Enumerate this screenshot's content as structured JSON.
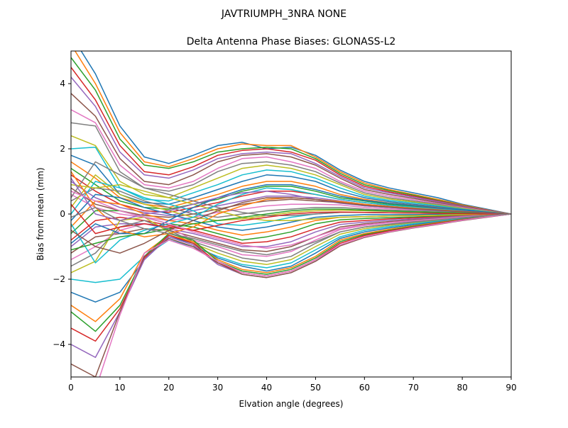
{
  "figure": {
    "suptitle": "JAVTRIUMPH_3NRA NONE"
  },
  "chart_data": {
    "type": "line",
    "title": "Delta Antenna Phase Biases: GLONASS-L2",
    "xlabel": "Elvation angle (degrees)",
    "ylabel": "Bias from mean (mm)",
    "xlim": [
      0,
      90
    ],
    "ylim": [
      -5,
      5
    ],
    "xticks": [
      0,
      10,
      20,
      30,
      40,
      50,
      60,
      70,
      80,
      90
    ],
    "yticks": [
      -4,
      -2,
      0,
      2,
      4
    ],
    "xtick_labels": [
      "0",
      "10",
      "20",
      "30",
      "40",
      "50",
      "60",
      "70",
      "80",
      "90"
    ],
    "ytick_labels": [
      "−4",
      "−2",
      "0",
      "2",
      "4"
    ],
    "grid": false,
    "legend": "none",
    "colors": [
      "#1f77b4",
      "#ff7f0e",
      "#2ca02c",
      "#d62728",
      "#9467bd",
      "#8c564b",
      "#e377c2",
      "#7f7f7f",
      "#bcbd22",
      "#17becf"
    ],
    "x": [
      0,
      5,
      10,
      15,
      20,
      25,
      30,
      35,
      40,
      45,
      50,
      55,
      60,
      65,
      70,
      75,
      80,
      85,
      90
    ],
    "series": [
      {
        "values": [
          5.5,
          4.3,
          2.7,
          1.75,
          1.55,
          1.8,
          2.1,
          2.2,
          2.0,
          2.05,
          1.8,
          1.35,
          1.0,
          0.8,
          0.65,
          0.5,
          0.3,
          0.15,
          0
        ]
      },
      {
        "values": [
          5.2,
          4.0,
          2.5,
          1.6,
          1.45,
          1.7,
          2.0,
          2.15,
          2.1,
          2.1,
          1.75,
          1.3,
          0.95,
          0.75,
          0.6,
          0.45,
          0.28,
          0.13,
          0
        ]
      },
      {
        "values": [
          4.8,
          3.8,
          2.3,
          1.5,
          1.4,
          1.6,
          1.9,
          2.0,
          2.05,
          2.0,
          1.7,
          1.25,
          0.9,
          0.72,
          0.58,
          0.42,
          0.26,
          0.12,
          0
        ]
      },
      {
        "values": [
          4.5,
          3.5,
          2.1,
          1.3,
          1.2,
          1.45,
          1.8,
          1.95,
          2.0,
          1.9,
          1.65,
          1.2,
          0.85,
          0.68,
          0.55,
          0.4,
          0.25,
          0.12,
          0
        ]
      },
      {
        "values": [
          4.2,
          3.3,
          1.9,
          1.2,
          1.1,
          1.35,
          1.7,
          1.85,
          1.9,
          1.85,
          1.55,
          1.15,
          0.8,
          0.65,
          0.52,
          0.38,
          0.24,
          0.11,
          0
        ]
      },
      {
        "values": [
          3.7,
          3.0,
          1.7,
          1.0,
          0.9,
          1.2,
          1.6,
          1.8,
          1.85,
          1.75,
          1.5,
          1.1,
          0.75,
          0.6,
          0.48,
          0.35,
          0.22,
          0.1,
          0
        ]
      },
      {
        "values": [
          3.2,
          2.8,
          1.5,
          0.9,
          0.8,
          1.0,
          1.4,
          1.7,
          1.75,
          1.6,
          1.4,
          1.0,
          0.7,
          0.55,
          0.44,
          0.32,
          0.2,
          0.09,
          0
        ]
      },
      {
        "values": [
          2.8,
          2.7,
          1.3,
          0.8,
          0.7,
          0.9,
          1.3,
          1.55,
          1.6,
          1.5,
          1.3,
          0.95,
          0.65,
          0.5,
          0.4,
          0.3,
          0.18,
          0.08,
          0
        ]
      },
      {
        "values": [
          2.4,
          2.1,
          1.0,
          0.6,
          0.5,
          0.8,
          1.1,
          1.4,
          1.5,
          1.4,
          1.2,
          0.9,
          0.6,
          0.46,
          0.37,
          0.27,
          0.17,
          0.08,
          0
        ]
      },
      {
        "values": [
          2.0,
          2.05,
          0.8,
          0.45,
          0.4,
          0.65,
          0.9,
          1.2,
          1.35,
          1.3,
          1.1,
          0.8,
          0.55,
          0.42,
          0.34,
          0.25,
          0.15,
          0.07,
          0
        ]
      },
      {
        "values": [
          1.8,
          1.5,
          0.6,
          0.35,
          0.3,
          0.5,
          0.75,
          1.0,
          1.2,
          1.15,
          1.0,
          0.7,
          0.5,
          0.38,
          0.3,
          0.22,
          0.14,
          0.06,
          0
        ]
      },
      {
        "values": [
          1.6,
          1.1,
          0.5,
          0.3,
          0.2,
          0.4,
          0.6,
          0.85,
          1.0,
          1.0,
          0.85,
          0.6,
          0.45,
          0.34,
          0.27,
          0.2,
          0.12,
          0.06,
          0
        ]
      },
      {
        "values": [
          1.4,
          0.9,
          0.4,
          0.2,
          0.15,
          0.3,
          0.45,
          0.7,
          0.85,
          0.85,
          0.7,
          0.5,
          0.4,
          0.3,
          0.24,
          0.18,
          0.11,
          0.05,
          0
        ]
      },
      {
        "values": [
          1.2,
          0.7,
          0.3,
          0.1,
          0.05,
          0.2,
          0.35,
          0.55,
          0.7,
          0.7,
          0.6,
          0.45,
          0.35,
          0.26,
          0.21,
          0.16,
          0.1,
          0.05,
          0
        ]
      },
      {
        "values": [
          1.0,
          0.5,
          0.2,
          0.05,
          -0.05,
          0.1,
          0.25,
          0.4,
          0.55,
          0.55,
          0.5,
          0.4,
          0.3,
          0.22,
          0.18,
          0.14,
          0.09,
          0.04,
          0
        ]
      },
      {
        "values": [
          0.8,
          0.3,
          0.1,
          -0.05,
          -0.1,
          0.0,
          0.15,
          0.3,
          0.4,
          0.45,
          0.4,
          0.35,
          0.25,
          0.2,
          0.16,
          0.12,
          0.08,
          0.04,
          0
        ]
      },
      {
        "values": [
          0.6,
          0.2,
          0.0,
          -0.1,
          -0.2,
          -0.1,
          0.05,
          0.15,
          0.25,
          0.3,
          0.3,
          0.28,
          0.2,
          0.16,
          0.13,
          0.1,
          0.06,
          0.03,
          0
        ]
      },
      {
        "values": [
          0.4,
          0.8,
          0.7,
          0.4,
          0.2,
          0.0,
          -0.1,
          0.0,
          0.1,
          0.15,
          0.2,
          0.2,
          0.15,
          0.12,
          0.1,
          0.08,
          0.05,
          0.02,
          0
        ]
      },
      {
        "values": [
          0.2,
          1.2,
          0.6,
          0.3,
          0.1,
          -0.1,
          -0.2,
          -0.15,
          -0.05,
          0.05,
          0.1,
          0.12,
          0.1,
          0.08,
          0.07,
          0.05,
          0.03,
          0.01,
          0
        ]
      },
      {
        "values": [
          0.0,
          1.0,
          0.8,
          0.5,
          0.3,
          0.1,
          -0.3,
          -0.35,
          -0.25,
          -0.1,
          0.0,
          0.05,
          0.05,
          0.04,
          0.03,
          0.02,
          0.01,
          0.0,
          0
        ]
      },
      {
        "values": [
          -0.2,
          0.6,
          0.5,
          0.2,
          0.0,
          -0.2,
          -0.4,
          -0.5,
          -0.4,
          -0.25,
          -0.1,
          -0.05,
          -0.02,
          -0.02,
          -0.02,
          -0.01,
          -0.01,
          0.0,
          0
        ]
      },
      {
        "values": [
          -0.4,
          0.4,
          0.3,
          0.0,
          -0.2,
          -0.3,
          -0.5,
          -0.65,
          -0.55,
          -0.4,
          -0.2,
          -0.1,
          -0.08,
          -0.06,
          -0.05,
          -0.04,
          -0.02,
          -0.01,
          0
        ]
      },
      {
        "values": [
          -0.6,
          0.1,
          0.1,
          -0.1,
          -0.3,
          -0.4,
          -0.6,
          -0.8,
          -0.7,
          -0.55,
          -0.3,
          -0.18,
          -0.14,
          -0.11,
          -0.09,
          -0.07,
          -0.04,
          -0.02,
          0
        ]
      },
      {
        "values": [
          -0.8,
          -0.2,
          -0.1,
          -0.2,
          -0.35,
          -0.5,
          -0.7,
          -0.9,
          -0.85,
          -0.7,
          -0.45,
          -0.25,
          -0.2,
          -0.15,
          -0.12,
          -0.09,
          -0.06,
          -0.03,
          0
        ]
      },
      {
        "values": [
          -1.0,
          -0.4,
          -0.3,
          -0.3,
          -0.45,
          -0.6,
          -0.8,
          -1.0,
          -1.0,
          -0.85,
          -0.55,
          -0.32,
          -0.25,
          -0.19,
          -0.15,
          -0.11,
          -0.07,
          -0.03,
          0
        ]
      },
      {
        "values": [
          -1.2,
          -0.7,
          -0.6,
          -0.45,
          -0.5,
          -0.7,
          -0.9,
          -1.1,
          -1.15,
          -1.0,
          -0.7,
          -0.4,
          -0.3,
          -0.23,
          -0.18,
          -0.14,
          -0.09,
          -0.04,
          0
        ]
      },
      {
        "values": [
          -1.4,
          -1.0,
          -0.5,
          -0.3,
          -0.4,
          -0.8,
          -1.0,
          -1.25,
          -1.3,
          -1.15,
          -0.8,
          -0.48,
          -0.35,
          -0.27,
          -0.21,
          -0.16,
          -0.1,
          -0.05,
          0
        ]
      },
      {
        "values": [
          -1.6,
          -1.2,
          -0.4,
          -0.2,
          -0.5,
          -0.85,
          -1.1,
          -1.35,
          -1.45,
          -1.3,
          -0.9,
          -0.55,
          -0.4,
          -0.31,
          -0.24,
          -0.18,
          -0.12,
          -0.05,
          0
        ]
      },
      {
        "values": [
          -1.8,
          -1.45,
          -0.2,
          -0.1,
          -0.55,
          -0.9,
          -1.2,
          -1.45,
          -1.55,
          -1.4,
          -1.0,
          -0.62,
          -0.45,
          -0.35,
          -0.27,
          -0.2,
          -0.13,
          -0.06,
          0
        ]
      },
      {
        "values": [
          -2.0,
          -2.1,
          -2.0,
          -1.3,
          -0.8,
          -1.0,
          -1.3,
          -1.55,
          -1.65,
          -1.5,
          -1.1,
          -0.7,
          -0.5,
          -0.39,
          -0.3,
          -0.22,
          -0.14,
          -0.07,
          0
        ]
      },
      {
        "values": [
          -2.4,
          -2.7,
          -2.4,
          -1.4,
          -0.7,
          -0.9,
          -1.35,
          -1.6,
          -1.75,
          -1.6,
          -1.2,
          -0.75,
          -0.55,
          -0.43,
          -0.33,
          -0.24,
          -0.15,
          -0.07,
          0
        ]
      },
      {
        "values": [
          -2.8,
          -3.3,
          -2.6,
          -1.2,
          -0.65,
          -0.85,
          -1.4,
          -1.7,
          -1.8,
          -1.65,
          -1.3,
          -0.8,
          -0.6,
          -0.47,
          -0.36,
          -0.26,
          -0.16,
          -0.08,
          0
        ]
      },
      {
        "values": [
          -3.0,
          -3.6,
          -2.8,
          -1.3,
          -0.6,
          -0.8,
          -1.45,
          -1.75,
          -1.85,
          -1.7,
          -1.35,
          -0.85,
          -0.63,
          -0.5,
          -0.38,
          -0.28,
          -0.17,
          -0.08,
          0
        ]
      },
      {
        "values": [
          -3.5,
          -3.9,
          -2.9,
          -1.35,
          -0.65,
          -0.9,
          -1.5,
          -1.8,
          -1.9,
          -1.75,
          -1.4,
          -0.9,
          -0.66,
          -0.52,
          -0.4,
          -0.29,
          -0.18,
          -0.09,
          0
        ]
      },
      {
        "values": [
          -4.0,
          -4.4,
          -3.0,
          -1.4,
          -0.7,
          -0.95,
          -1.55,
          -1.85,
          -1.95,
          -1.8,
          -1.45,
          -0.95,
          -0.7,
          -0.55,
          -0.42,
          -0.31,
          -0.19,
          -0.09,
          0
        ]
      },
      {
        "values": [
          -4.6,
          -5.0,
          -3.0,
          -1.3,
          -0.75,
          -1.0,
          -1.5,
          -1.85,
          -1.95,
          -1.8,
          -1.45,
          -0.98,
          -0.72,
          -0.56,
          -0.43,
          -0.32,
          -0.2,
          -0.1,
          0
        ]
      },
      {
        "values": [
          -5.0,
          -5.4,
          -3.1,
          -1.2,
          -0.8,
          -1.05,
          -1.45,
          -1.8,
          -1.9,
          -1.75,
          -1.4,
          -0.95,
          -0.7,
          -0.55,
          -0.42,
          -0.31,
          -0.19,
          -0.09,
          0
        ]
      },
      {
        "values": [
          0.5,
          1.6,
          1.2,
          0.8,
          0.6,
          0.4,
          0.2,
          0.05,
          -0.05,
          -0.05,
          0.0,
          0.05,
          0.05,
          0.04,
          0.03,
          0.02,
          0.01,
          0.0,
          0
        ]
      },
      {
        "values": [
          0.9,
          0.8,
          0.9,
          0.7,
          0.5,
          0.3,
          0.1,
          -0.1,
          -0.2,
          -0.2,
          -0.15,
          -0.1,
          -0.08,
          -0.06,
          -0.05,
          -0.04,
          -0.02,
          -0.01,
          0
        ]
      },
      {
        "values": [
          -0.3,
          -1.5,
          -0.8,
          -0.5,
          -0.3,
          -0.1,
          0.3,
          0.6,
          0.8,
          0.75,
          0.6,
          0.45,
          0.35,
          0.27,
          0.21,
          0.15,
          0.1,
          0.05,
          0
        ]
      },
      {
        "values": [
          -0.9,
          -0.3,
          -0.6,
          -0.6,
          -0.2,
          0.2,
          0.5,
          0.75,
          0.9,
          0.9,
          0.75,
          0.55,
          0.42,
          0.33,
          0.26,
          0.19,
          0.12,
          0.06,
          0
        ]
      },
      {
        "values": [
          1.3,
          0.2,
          -0.5,
          -0.7,
          -0.6,
          -0.4,
          0.0,
          0.25,
          0.45,
          0.5,
          0.45,
          0.38,
          0.3,
          0.23,
          0.18,
          0.13,
          0.08,
          0.04,
          0
        ]
      },
      {
        "values": [
          -1.1,
          -0.9,
          -0.7,
          -0.6,
          -0.45,
          -0.3,
          -0.2,
          -0.1,
          0.0,
          0.1,
          0.15,
          0.15,
          0.12,
          0.09,
          0.07,
          0.05,
          0.03,
          0.02,
          0
        ]
      },
      {
        "values": [
          0.3,
          -0.6,
          -0.4,
          -0.3,
          -0.4,
          -0.5,
          -0.35,
          -0.2,
          -0.1,
          0.0,
          0.05,
          0.06,
          0.05,
          0.04,
          0.03,
          0.02,
          0.01,
          0.0,
          0
        ]
      },
      {
        "values": [
          1.1,
          0.0,
          -0.2,
          0.0,
          0.1,
          0.3,
          0.5,
          0.65,
          0.7,
          0.6,
          0.45,
          0.33,
          0.25,
          0.2,
          0.15,
          0.11,
          0.07,
          0.03,
          0
        ]
      },
      {
        "values": [
          -0.5,
          -1.0,
          -1.2,
          -0.9,
          -0.5,
          -0.2,
          0.1,
          0.35,
          0.5,
          0.5,
          0.45,
          0.35,
          0.27,
          0.21,
          0.16,
          0.12,
          0.07,
          0.04,
          0
        ]
      },
      {
        "values": [
          0.7,
          0.4,
          0.1,
          -0.1,
          -0.3,
          -0.55,
          -0.75,
          -0.95,
          -1.05,
          -0.95,
          -0.7,
          -0.45,
          -0.33,
          -0.26,
          -0.2,
          -0.15,
          -0.09,
          -0.05,
          0
        ]
      },
      {
        "values": [
          -0.1,
          0.2,
          -0.2,
          -0.45,
          -0.6,
          -0.75,
          -0.95,
          -1.15,
          -1.25,
          -1.1,
          -0.85,
          -0.55,
          -0.4,
          -0.32,
          -0.25,
          -0.18,
          -0.11,
          -0.05,
          0
        ]
      }
    ]
  }
}
